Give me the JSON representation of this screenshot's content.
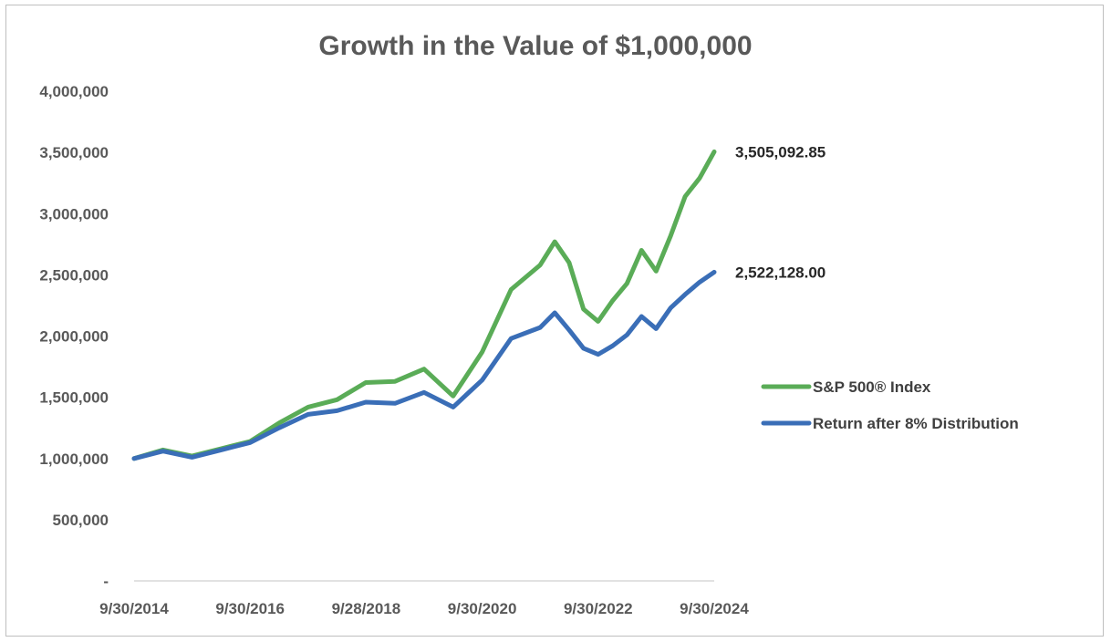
{
  "chart_data": {
    "type": "line",
    "title": "Growth in the Value of $1,000,000",
    "xlabel": "",
    "ylabel": "",
    "ylim": [
      0,
      4000000
    ],
    "y_ticks": [
      0,
      500000,
      1000000,
      1500000,
      2000000,
      2500000,
      3000000,
      3500000,
      4000000
    ],
    "y_tick_labels": [
      "-",
      "500,000",
      "1,000,000",
      "1,500,000",
      "2,000,000",
      "2,500,000",
      "3,000,000",
      "3,500,000",
      "4,000,000"
    ],
    "x_tick_labels": [
      "9/30/2014",
      "9/30/2016",
      "9/28/2018",
      "9/30/2020",
      "9/30/2022",
      "9/30/2024"
    ],
    "grid": false,
    "legend_position": "right",
    "x": [
      "2014-09-30",
      "2015-03-31",
      "2015-09-30",
      "2016-03-31",
      "2016-09-30",
      "2017-03-31",
      "2017-09-30",
      "2018-03-31",
      "2018-09-28",
      "2019-03-31",
      "2019-09-30",
      "2020-03-31",
      "2020-09-30",
      "2021-03-31",
      "2021-09-30",
      "2021-12-31",
      "2022-03-31",
      "2022-06-30",
      "2022-09-30",
      "2022-12-31",
      "2023-03-31",
      "2023-06-30",
      "2023-09-30",
      "2023-12-31",
      "2024-03-31",
      "2024-06-30",
      "2024-09-30"
    ],
    "series": [
      {
        "name": "S&P 500® Index",
        "color": "#5aac57",
        "end_label": "3,505,092.85",
        "values": [
          1000000,
          1070000,
          1020000,
          1080000,
          1140000,
          1290000,
          1420000,
          1480000,
          1620000,
          1630000,
          1730000,
          1510000,
          1870000,
          2380000,
          2580000,
          2770000,
          2600000,
          2220000,
          2120000,
          2290000,
          2430000,
          2700000,
          2530000,
          2820000,
          3140000,
          3290000,
          3505093
        ]
      },
      {
        "name": "Return after 8% Distribution",
        "color": "#3a6eb7",
        "end_label": "2,522,128.00",
        "values": [
          1000000,
          1060000,
          1010000,
          1070000,
          1130000,
          1250000,
          1360000,
          1390000,
          1460000,
          1450000,
          1540000,
          1420000,
          1640000,
          1980000,
          2070000,
          2190000,
          2050000,
          1900000,
          1850000,
          1920000,
          2010000,
          2160000,
          2060000,
          2230000,
          2340000,
          2440000,
          2522128
        ]
      }
    ]
  }
}
